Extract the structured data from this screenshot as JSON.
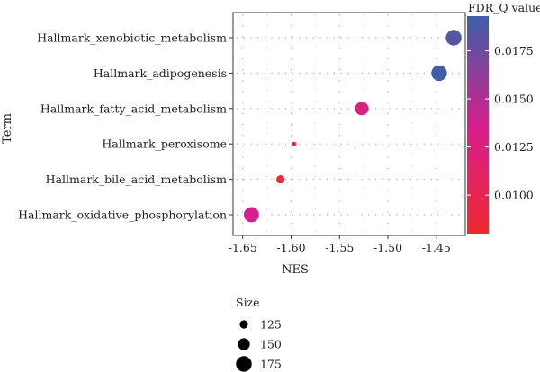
{
  "chart_data": {
    "type": "scatter",
    "xlabel": "NES",
    "ylabel": "Term",
    "xlim": [
      -1.66,
      -1.42
    ],
    "x_ticks": [
      "-1.65",
      "-1.60",
      "-1.55",
      "-1.50",
      "-1.45"
    ],
    "x_tick_values": [
      -1.65,
      -1.6,
      -1.55,
      -1.5,
      -1.45
    ],
    "grid": true,
    "terms": [
      "Hallmark_xenobiotic_metabolism",
      "Hallmark_adipogenesis",
      "Hallmark_fatty_acid_metabolism",
      "Hallmark_peroxisome",
      "Hallmark_bile_acid_metabolism",
      "Hallmark_oxidative_phosphorylation"
    ],
    "points": [
      {
        "term": "Hallmark_xenobiotic_metabolism",
        "nes": -1.432,
        "fdr_q": 0.0185,
        "size": 175
      },
      {
        "term": "Hallmark_adipogenesis",
        "nes": -1.447,
        "fdr_q": 0.0192,
        "size": 175
      },
      {
        "term": "Hallmark_fatty_acid_metabolism",
        "nes": -1.527,
        "fdr_q": 0.0128,
        "size": 160
      },
      {
        "term": "Hallmark_peroxisome",
        "nes": -1.597,
        "fdr_q": 0.0086,
        "size": 100
      },
      {
        "term": "Hallmark_bile_acid_metabolism",
        "nes": -1.611,
        "fdr_q": 0.0088,
        "size": 125
      },
      {
        "term": "Hallmark_oxidative_phosphorylation",
        "nes": -1.641,
        "fdr_q": 0.0138,
        "size": 172
      }
    ],
    "color_legend": {
      "title": "FDR_Q value",
      "min": 0.008,
      "max": 0.0193,
      "ticks": [
        "0.0100",
        "0.0125",
        "0.0150",
        "0.0175"
      ],
      "tick_values": [
        0.01,
        0.0125,
        0.015,
        0.0175
      ],
      "low_color": "#ee2a2f",
      "mid_color": "#d5208e",
      "high_color": "#3d5fa8"
    },
    "size_legend": {
      "title": "Size",
      "labels": [
        "125",
        "150",
        "175"
      ],
      "values": [
        125,
        150,
        175
      ]
    },
    "point_color_mode": "fdr_q"
  }
}
